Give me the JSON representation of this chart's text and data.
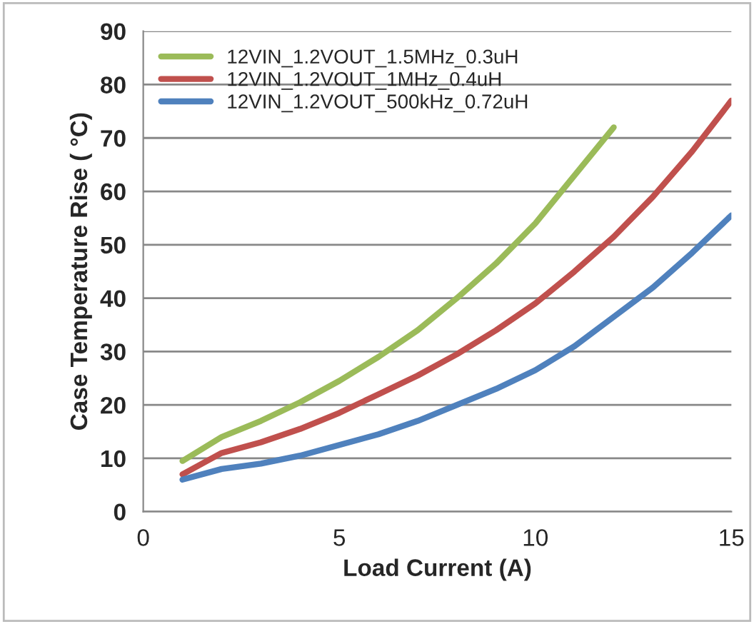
{
  "chart_data": {
    "type": "line",
    "xlabel": "Load Current (A)",
    "ylabel": "Case Temperature Rise ( °C)",
    "x": [
      1,
      2,
      3,
      4,
      5,
      6,
      7,
      8,
      9,
      10,
      11,
      12,
      13,
      14,
      15
    ],
    "series": [
      {
        "name": "12VIN_1.2VOUT_1.5MHz_0.3uH",
        "color": "#9bbb59",
        "values": [
          9.5,
          14,
          17,
          20.5,
          24.5,
          29,
          34,
          40,
          46.5,
          54,
          63,
          72,
          null,
          null,
          null
        ]
      },
      {
        "name": "12VIN_1.2VOUT_1MHz_0.4uH",
        "color": "#c0504d",
        "values": [
          7,
          11,
          13,
          15.5,
          18.5,
          22,
          25.5,
          29.5,
          34,
          39,
          45,
          51.5,
          59,
          67.5,
          77
        ]
      },
      {
        "name": "12VIN_1.2VOUT_500kHz_0.72uH",
        "color": "#4f81bd",
        "values": [
          6,
          8,
          9,
          10.5,
          12.5,
          14.5,
          17,
          20,
          23,
          26.5,
          31,
          36.5,
          42,
          48.5,
          55.5
        ]
      }
    ],
    "xlim": [
      0,
      15
    ],
    "xticks": [
      0,
      5,
      10,
      15
    ],
    "ylim": [
      0,
      90
    ],
    "yticks": [
      0,
      10,
      20,
      30,
      40,
      50,
      60,
      70,
      80,
      90
    ],
    "grid": "y",
    "legend": "top left",
    "marker": "none",
    "line_style": "solid"
  }
}
